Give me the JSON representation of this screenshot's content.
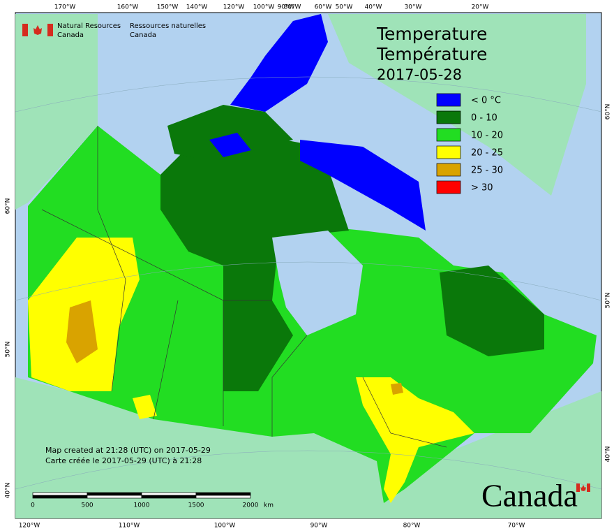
{
  "header": {
    "agency_en": [
      "Natural Resources",
      "Canada"
    ],
    "agency_fr": [
      "Ressources naturelles",
      "Canada"
    ]
  },
  "title": [
    "Temperature",
    "Température",
    "2017-05-28"
  ],
  "legend": [
    {
      "label": "< 0 °C",
      "color": "#0000ff"
    },
    {
      "label": "0 - 10",
      "color": "#0a780a"
    },
    {
      "label": "10 - 20",
      "color": "#22dd22"
    },
    {
      "label": "20 - 25",
      "color": "#ffff00"
    },
    {
      "label": "25 - 30",
      "color": "#d9a300"
    },
    {
      "label": "> 30",
      "color": "#ff0000"
    }
  ],
  "graticule": {
    "top": [
      "170°W",
      "160°W",
      "150°W",
      "140°W",
      "120°W",
      "100°W",
      "90°W",
      "80°W",
      "60°W",
      "50°W",
      "40°W",
      "30°W",
      "20°W"
    ],
    "bottom": [
      "120°W",
      "110°W",
      "100°W",
      "90°W",
      "80°W",
      "70°W"
    ],
    "left": [
      "60°N",
      "50°N",
      "40°N"
    ],
    "right": [
      "60°N",
      "50°N",
      "40°N"
    ]
  },
  "notes": [
    "Map created at 21:28 (UTC) on 2017-05-29",
    "Carte créée le 2017-05-29 (UTC) à 21:28"
  ],
  "scale": {
    "labels": [
      "0",
      "500",
      "1000",
      "1500",
      "2000"
    ],
    "unit": "km"
  },
  "wordmark": "Canada"
}
